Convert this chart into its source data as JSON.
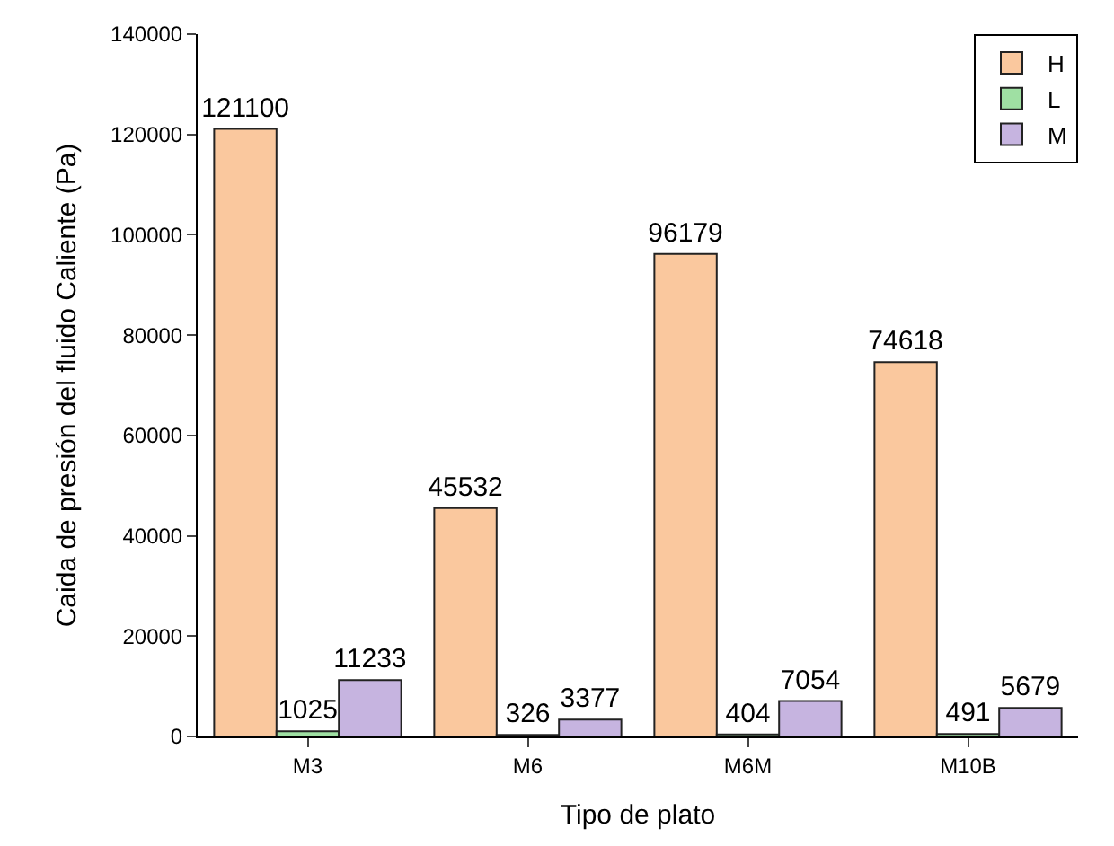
{
  "chart_data": {
    "type": "bar",
    "xlabel": "Tipo de plato",
    "ylabel": "Caida de presión del fluido Caliente (Pa)",
    "categories": [
      "M3",
      "M6",
      "M6M",
      "M10B"
    ],
    "series": [
      {
        "name": "H",
        "color": "#fac89e",
        "values": [
          121100,
          45532,
          96179,
          74618
        ]
      },
      {
        "name": "L",
        "color": "#9fe0a3",
        "values": [
          1025,
          326,
          404,
          491
        ]
      },
      {
        "name": "M",
        "color": "#c6b4e0",
        "values": [
          11233,
          3377,
          7054,
          5679
        ]
      }
    ],
    "ylim": [
      0,
      140000
    ],
    "yticks": [
      0,
      20000,
      40000,
      60000,
      80000,
      100000,
      120000,
      140000
    ],
    "data_labels": true,
    "legend": "top right"
  }
}
